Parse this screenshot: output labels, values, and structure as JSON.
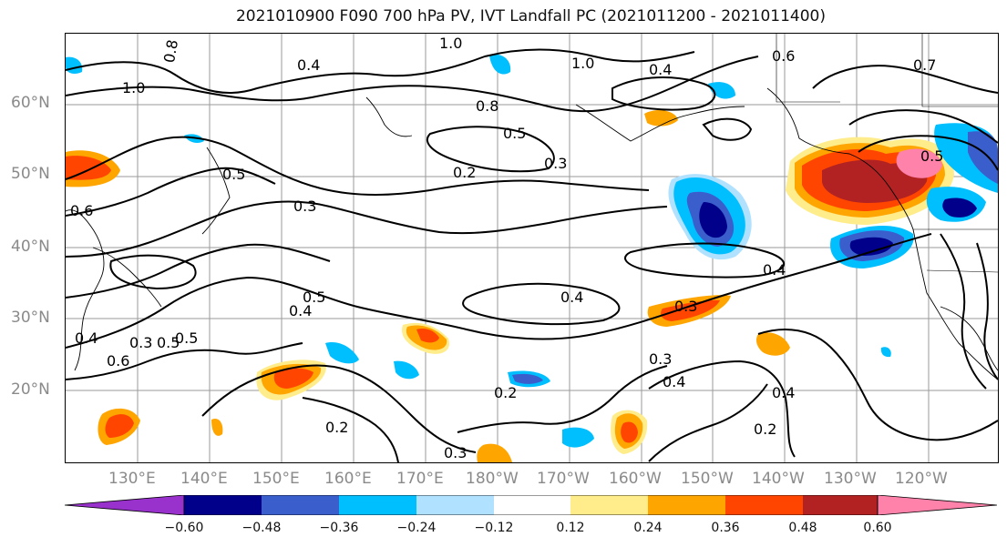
{
  "title": "2021010900 F090 700 hPa PV, IVT Landfall PC (2021011200 - 2021011400)",
  "latitude_labels": [
    "60°N",
    "50°N",
    "40°N",
    "30°N",
    "20°N"
  ],
  "longitude_labels": [
    "130°E",
    "140°E",
    "150°E",
    "160°E",
    "170°E",
    "180°W",
    "170°W",
    "160°W",
    "150°W",
    "140°W",
    "130°W",
    "120°W"
  ],
  "contour_labels": [
    "1.0",
    "0.8",
    "0.4",
    "1.0",
    "1.0",
    "0.4",
    "0.6",
    "0.7",
    "0.8",
    "0.5",
    "0.3",
    "0.2",
    "0.5",
    "0.6",
    "0.3",
    "0.4",
    "0.5",
    "0.4",
    "0.3",
    "0.4",
    "0.4",
    "0.6",
    "0.5",
    "0.3",
    "0.4",
    "0.2",
    "0.2",
    "0.3",
    "0.4",
    "0.2",
    "0.3",
    "0.5",
    "0.5"
  ],
  "colorbar": {
    "ticks": [
      "−0.60",
      "−0.48",
      "−0.36",
      "−0.24",
      "−0.12",
      "0.12",
      "0.24",
      "0.36",
      "0.48",
      "0.60"
    ],
    "colors": [
      "#9932cc",
      "#00008b",
      "#3a5fcd",
      "#00bfff",
      "#b0e2ff",
      "#ffffff",
      "#ffec8b",
      "#ffa500",
      "#ff4500",
      "#b22222",
      "#ff82ab"
    ]
  },
  "fill_colors": {
    "deep_blue": "#00008b",
    "mid_blue": "#3a5fcd",
    "cyan": "#00bfff",
    "light_blue": "#b0e2ff",
    "yellow": "#ffec8b",
    "orange": "#ffa500",
    "red_orange": "#ff4500",
    "dark_red": "#b22222",
    "pink": "#ff82ab"
  }
}
